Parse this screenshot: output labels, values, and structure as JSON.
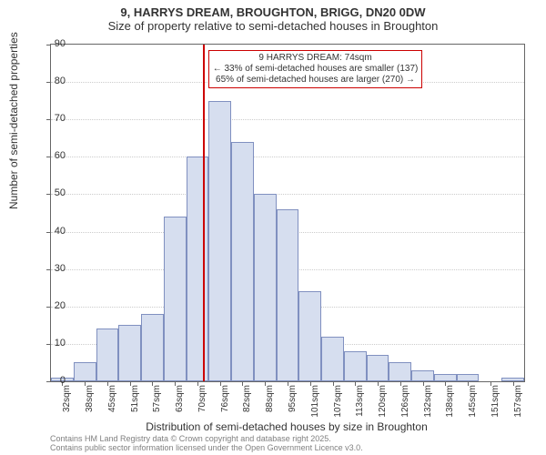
{
  "title": {
    "line1": "9, HARRYS DREAM, BROUGHTON, BRIGG, DN20 0DW",
    "line2": "Size of property relative to semi-detached houses in Broughton"
  },
  "ylabel": "Number of semi-detached properties",
  "xlabel": "Distribution of semi-detached houses by size in Broughton",
  "footnote": {
    "line1": "Contains HM Land Registry data © Crown copyright and database right 2025.",
    "line2": "Contains public sector information licensed under the Open Government Licence v3.0."
  },
  "chart": {
    "type": "histogram",
    "ylim": [
      0,
      90
    ],
    "ytick_step": 10,
    "background_color": "#ffffff",
    "border_color": "#666666",
    "grid_color": "#cccccc",
    "bar_fill": "#d6deef",
    "bar_stroke": "#8090c0",
    "marker_color": "#cc0000",
    "marker_x": 74,
    "bins": [
      {
        "label": "32sqm",
        "x": 32,
        "value": 1
      },
      {
        "label": "38sqm",
        "x": 38,
        "value": 5
      },
      {
        "label": "45sqm",
        "x": 45,
        "value": 14
      },
      {
        "label": "51sqm",
        "x": 51,
        "value": 15
      },
      {
        "label": "57sqm",
        "x": 57,
        "value": 18
      },
      {
        "label": "63sqm",
        "x": 63,
        "value": 44
      },
      {
        "label": "70sqm",
        "x": 70,
        "value": 60
      },
      {
        "label": "76sqm",
        "x": 76,
        "value": 75
      },
      {
        "label": "82sqm",
        "x": 82,
        "value": 64
      },
      {
        "label": "88sqm",
        "x": 88,
        "value": 50
      },
      {
        "label": "95sqm",
        "x": 95,
        "value": 46
      },
      {
        "label": "101sqm",
        "x": 101,
        "value": 24
      },
      {
        "label": "107sqm",
        "x": 107,
        "value": 12
      },
      {
        "label": "113sqm",
        "x": 113,
        "value": 8
      },
      {
        "label": "120sqm",
        "x": 120,
        "value": 7
      },
      {
        "label": "126sqm",
        "x": 126,
        "value": 5
      },
      {
        "label": "132sqm",
        "x": 132,
        "value": 3
      },
      {
        "label": "138sqm",
        "x": 138,
        "value": 2
      },
      {
        "label": "145sqm",
        "x": 145,
        "value": 2
      },
      {
        "label": "151sqm",
        "x": 151,
        "value": 0
      },
      {
        "label": "157sqm",
        "x": 157,
        "value": 1
      }
    ]
  },
  "annotation": {
    "line1": "9 HARRYS DREAM: 74sqm",
    "line2": "← 33% of semi-detached houses are smaller (137)",
    "line3": "65% of semi-detached houses are larger (270) →"
  }
}
